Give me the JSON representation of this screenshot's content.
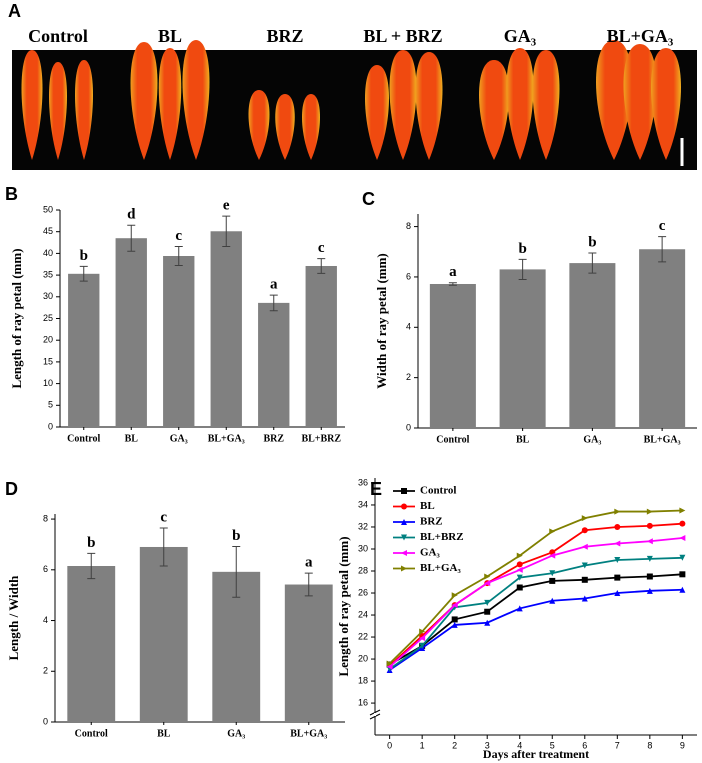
{
  "photo": {
    "panel": "A",
    "captions": [
      "Control",
      "BL",
      "BRZ",
      "BL + BRZ",
      "GA₃",
      "BL+GA₃"
    ]
  },
  "chart_data": [
    {
      "panel": "B",
      "type": "bar",
      "categories": [
        "Control",
        "BL",
        "GA₃",
        "BL+GA₃",
        "BRZ",
        "BL+BRZ"
      ],
      "values": [
        35.3,
        43.5,
        39.4,
        45.1,
        28.6,
        37.1
      ],
      "errors": [
        1.7,
        3.0,
        2.2,
        3.5,
        1.8,
        1.7
      ],
      "letters": [
        "b",
        "d",
        "c",
        "e",
        "a",
        "c"
      ],
      "color": "#808080",
      "ylabel": "Length of ray petal (mm)",
      "ylim": [
        0,
        50
      ],
      "yticks": [
        0,
        5,
        10,
        15,
        20,
        25,
        30,
        35,
        40,
        45,
        50
      ]
    },
    {
      "panel": "C",
      "type": "bar",
      "categories": [
        "Control",
        "BL",
        "GA₃",
        "BL+GA₃"
      ],
      "values": [
        5.72,
        6.3,
        6.55,
        7.1
      ],
      "errors": [
        0.05,
        0.4,
        0.4,
        0.5
      ],
      "letters": [
        "a",
        "b",
        "b",
        "c"
      ],
      "color": "#808080",
      "ylabel": "Width of ray petal (mm)",
      "ylim": [
        0,
        8.5
      ],
      "yticks": [
        0,
        2,
        4,
        6,
        8
      ]
    },
    {
      "panel": "D",
      "type": "bar",
      "categories": [
        "Control",
        "BL",
        "GA₃",
        "BL+GA₃"
      ],
      "values": [
        6.15,
        6.9,
        5.92,
        5.42
      ],
      "errors": [
        0.5,
        0.75,
        1.0,
        0.45
      ],
      "letters": [
        "b",
        "c",
        "b",
        "a"
      ],
      "color": "#808080",
      "ylabel": "Length / Width",
      "ylim": [
        0,
        8.2
      ],
      "yticks": [
        0,
        2,
        4,
        6,
        8
      ]
    },
    {
      "panel": "E",
      "type": "line",
      "xlabel": "Days after treatment",
      "ylabel": "Length of ray petal (mm)",
      "x": [
        0,
        1,
        2,
        3,
        4,
        5,
        6,
        7,
        8,
        9
      ],
      "xlim": [
        -0.45,
        9.45
      ],
      "xticks": [
        0,
        1,
        2,
        3,
        4,
        5,
        6,
        7,
        8,
        9
      ],
      "ylim": [
        13.1,
        36.45
      ],
      "yticks": [
        16,
        18,
        20,
        22,
        24,
        26,
        28,
        30,
        32,
        34,
        36
      ],
      "series": [
        {
          "name": "Control",
          "color": "#000000",
          "marker": "square",
          "values": [
            19.5,
            21.2,
            23.6,
            24.3,
            26.5,
            27.1,
            27.2,
            27.4,
            27.5,
            27.7
          ]
        },
        {
          "name": "BL",
          "color": "#ff0000",
          "marker": "circle",
          "values": [
            19.4,
            22.1,
            24.9,
            26.9,
            28.6,
            29.7,
            31.7,
            32.0,
            32.1,
            32.3
          ]
        },
        {
          "name": "BRZ",
          "color": "#0000ff",
          "marker": "triangle-up",
          "values": [
            19.0,
            21.0,
            23.1,
            23.3,
            24.6,
            25.3,
            25.5,
            26.0,
            26.2,
            26.3
          ]
        },
        {
          "name": "BL+BRZ",
          "color": "#008080",
          "marker": "triangle-down",
          "values": [
            19.1,
            21.2,
            24.7,
            25.1,
            27.4,
            27.8,
            28.5,
            29.0,
            29.1,
            29.2
          ]
        },
        {
          "name": "GA₃",
          "color": "#ff00ff",
          "marker": "triangle-left",
          "values": [
            19.3,
            21.9,
            24.9,
            26.9,
            28.1,
            29.4,
            30.2,
            30.5,
            30.7,
            31.0
          ]
        },
        {
          "name": "BL+GA₃",
          "color": "#808000",
          "marker": "triangle-right",
          "values": [
            19.6,
            22.5,
            25.8,
            27.5,
            29.4,
            31.6,
            32.8,
            33.4,
            33.4,
            33.5
          ]
        }
      ]
    }
  ]
}
